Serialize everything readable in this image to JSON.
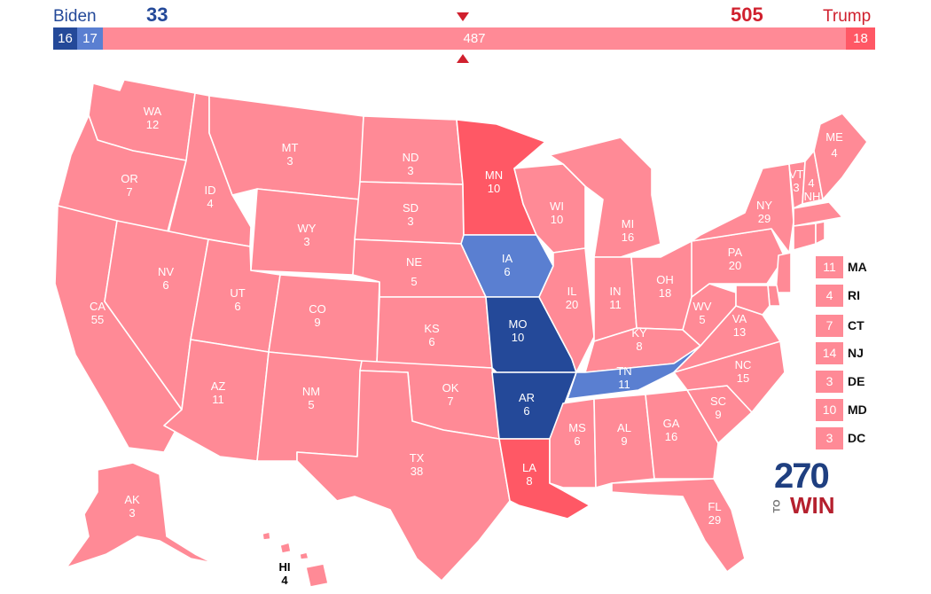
{
  "header": {
    "left_name": "Biden",
    "left_total": "33",
    "right_name": "Trump",
    "right_total": "505",
    "bar": {
      "seg_dark_blue": "16",
      "seg_light_blue": "17",
      "seg_mid": "487",
      "seg_right": "18"
    }
  },
  "colors": {
    "safe_dem": "#244999",
    "lean_dem": "#5a7fd1",
    "lean_rep": "#ff8a96",
    "safe_rep": "#ff5865",
    "border": "#ffffff"
  },
  "states": {
    "WA": {
      "abbr": "WA",
      "ev": "12"
    },
    "OR": {
      "abbr": "OR",
      "ev": "7"
    },
    "CA": {
      "abbr": "CA",
      "ev": "55"
    },
    "ID": {
      "abbr": "ID",
      "ev": "4"
    },
    "NV": {
      "abbr": "NV",
      "ev": "6"
    },
    "UT": {
      "abbr": "UT",
      "ev": "6"
    },
    "AZ": {
      "abbr": "AZ",
      "ev": "11"
    },
    "MT": {
      "abbr": "MT",
      "ev": "3"
    },
    "WY": {
      "abbr": "WY",
      "ev": "3"
    },
    "CO": {
      "abbr": "CO",
      "ev": "9"
    },
    "NM": {
      "abbr": "NM",
      "ev": "5"
    },
    "ND": {
      "abbr": "ND",
      "ev": "3"
    },
    "SD": {
      "abbr": "SD",
      "ev": "3"
    },
    "NE": {
      "abbr": "NE",
      "ev": "5"
    },
    "KS": {
      "abbr": "KS",
      "ev": "6"
    },
    "OK": {
      "abbr": "OK",
      "ev": "7"
    },
    "TX": {
      "abbr": "TX",
      "ev": "38"
    },
    "MN": {
      "abbr": "MN",
      "ev": "10"
    },
    "IA": {
      "abbr": "IA",
      "ev": "6"
    },
    "MO": {
      "abbr": "MO",
      "ev": "10"
    },
    "AR": {
      "abbr": "AR",
      "ev": "6"
    },
    "LA": {
      "abbr": "LA",
      "ev": "8"
    },
    "WI": {
      "abbr": "WI",
      "ev": "10"
    },
    "IL": {
      "abbr": "IL",
      "ev": "20"
    },
    "MI": {
      "abbr": "MI",
      "ev": "16"
    },
    "IN": {
      "abbr": "IN",
      "ev": "11"
    },
    "OH": {
      "abbr": "OH",
      "ev": "18"
    },
    "KY": {
      "abbr": "KY",
      "ev": "8"
    },
    "TN": {
      "abbr": "TN",
      "ev": "11"
    },
    "MS": {
      "abbr": "MS",
      "ev": "6"
    },
    "AL": {
      "abbr": "AL",
      "ev": "9"
    },
    "GA": {
      "abbr": "GA",
      "ev": "16"
    },
    "FL": {
      "abbr": "FL",
      "ev": "29"
    },
    "SC": {
      "abbr": "SC",
      "ev": "9"
    },
    "NC": {
      "abbr": "NC",
      "ev": "15"
    },
    "VA": {
      "abbr": "VA",
      "ev": "13"
    },
    "WV": {
      "abbr": "WV",
      "ev": "5"
    },
    "PA": {
      "abbr": "PA",
      "ev": "20"
    },
    "NY": {
      "abbr": "NY",
      "ev": "29"
    },
    "VT": {
      "abbr": "VT",
      "ev": "3"
    },
    "NH": {
      "abbr": "NH",
      "ev": "4"
    },
    "ME": {
      "abbr": "ME",
      "ev": "4"
    },
    "AK": {
      "abbr": "AK",
      "ev": "3"
    },
    "HI": {
      "abbr": "HI",
      "ev": "4"
    }
  },
  "small_states": [
    {
      "abbr": "MA",
      "ev": "11"
    },
    {
      "abbr": "RI",
      "ev": "4"
    },
    {
      "abbr": "CT",
      "ev": "7"
    },
    {
      "abbr": "NJ",
      "ev": "14"
    },
    {
      "abbr": "DE",
      "ev": "3"
    },
    {
      "abbr": "MD",
      "ev": "10"
    },
    {
      "abbr": "DC",
      "ev": "3"
    }
  ],
  "logo": {
    "number": "270",
    "to": "TO",
    "win": "WIN"
  }
}
